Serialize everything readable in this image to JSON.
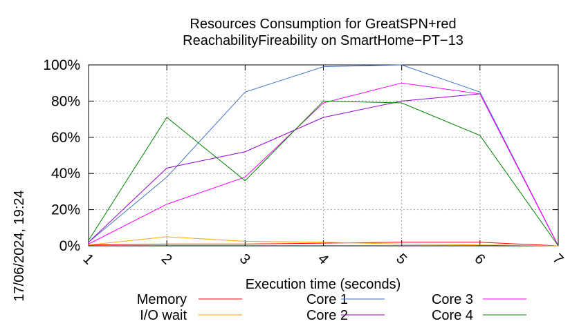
{
  "chart_data": {
    "type": "line",
    "title_line1": "Resources Consumption for GreatSPN+red",
    "title_line2": "ReachabilityFireability on SmartHome−PT−13",
    "xlabel": "Execution time (seconds)",
    "side_label": "17/06/2024, 19:24",
    "x": [
      1,
      2,
      3,
      4,
      5,
      6,
      7
    ],
    "xlim": [
      1,
      7
    ],
    "ylim": [
      0,
      100
    ],
    "x_ticks": [
      "1",
      "2",
      "3",
      "4",
      "5",
      "6",
      "7"
    ],
    "y_ticks": [
      "0%",
      "20%",
      "40%",
      "60%",
      "80%",
      "100%"
    ],
    "y_tick_values": [
      0,
      20,
      40,
      60,
      80,
      100
    ],
    "grid": true,
    "legend_position": "bottom",
    "series": [
      {
        "name": "Memory",
        "color": "#ff0000",
        "values": [
          0.5,
          1,
          1,
          1.5,
          2,
          2,
          0
        ]
      },
      {
        "name": "I/O wait",
        "color": "#ffa500",
        "values": [
          0.5,
          5,
          2.5,
          2,
          1,
          0.5,
          0
        ]
      },
      {
        "name": "Core 1",
        "color": "#4472c4",
        "values": [
          2,
          38,
          85,
          99,
          100,
          85,
          0
        ]
      },
      {
        "name": "Core 2",
        "color": "#9400d3",
        "values": [
          2,
          43,
          52,
          71,
          80,
          84,
          0
        ]
      },
      {
        "name": "Core 3",
        "color": "#ff00ff",
        "values": [
          1,
          23,
          38,
          79,
          90,
          84,
          0
        ]
      },
      {
        "name": "Core 4",
        "color": "#008000",
        "values": [
          3,
          71,
          36,
          80,
          79,
          61,
          0
        ]
      }
    ]
  }
}
